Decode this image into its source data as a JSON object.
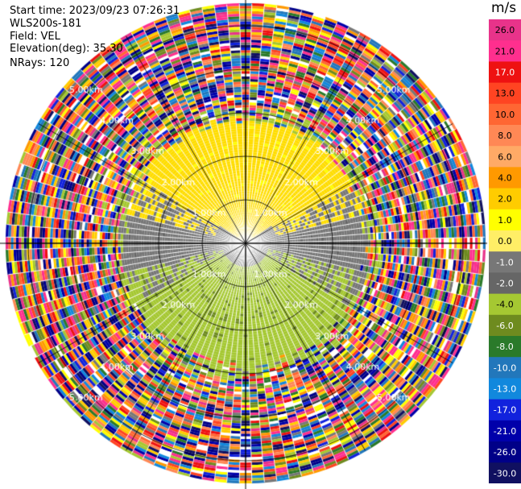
{
  "header": {
    "start_time": "Start time: 2023/09/23 07:26:31",
    "instrument": "WLS200s-181",
    "field": "Field: VEL",
    "elevation": "Elevation(deg): 35.30",
    "nrays": "NRays: 120"
  },
  "colorbar": {
    "unit": "m/s",
    "labels": [
      "26.0",
      "21.0",
      "17.0",
      "13.0",
      "10.0",
      "8.0",
      "6.0",
      "4.0",
      "2.0",
      "1.0",
      "0.0",
      "-1.0",
      "-2.0",
      "-4.0",
      "-6.0",
      "-8.0",
      "-10.0",
      "-13.0",
      "-17.0",
      "-21.0",
      "-26.0",
      "-30.0"
    ],
    "colors": [
      "#e8338a",
      "#ff2f8e",
      "#ee1111",
      "#ff4422",
      "#ff6633",
      "#ff8855",
      "#ffaa66",
      "#ff9900",
      "#ffcc00",
      "#ffff00",
      "#ffee66",
      "#777777",
      "#666666",
      "#a5c832",
      "#6e8b1f",
      "#2a7a2a",
      "#2277bb",
      "#1188dd",
      "#1122dd",
      "#0000aa",
      "#000088",
      "#101060"
    ]
  },
  "chart_data": {
    "type": "heatmap",
    "projection": "polar PPI",
    "field": "VEL",
    "unit": "m/s",
    "nrays": 120,
    "range_rings_km": [
      1,
      2,
      3,
      4,
      5
    ],
    "ring_labels": [
      "1.00km",
      "2.00km",
      "3.00km",
      "4.00km",
      "5.00km"
    ],
    "azimuth_spokes_deg": [
      0,
      30,
      60,
      90,
      120,
      150,
      180,
      210,
      240,
      270,
      300,
      330
    ],
    "max_range_km": 5.5,
    "valid_range_km": 2.8,
    "colorbar_range": [
      -30.0,
      26.0
    ],
    "dominant_regions": [
      {
        "sector": "north",
        "velocity_ms": 2.0,
        "color_class": "yellow"
      },
      {
        "sector": "south",
        "velocity_ms": -2.0,
        "color_class": "yellow-green"
      },
      {
        "sector": "east/west inner",
        "velocity_ms": 0.0,
        "color_class": "gray"
      },
      {
        "sector": "outer ring beyond 2.8 km",
        "velocity_ms": null,
        "color_class": "noise"
      }
    ]
  }
}
